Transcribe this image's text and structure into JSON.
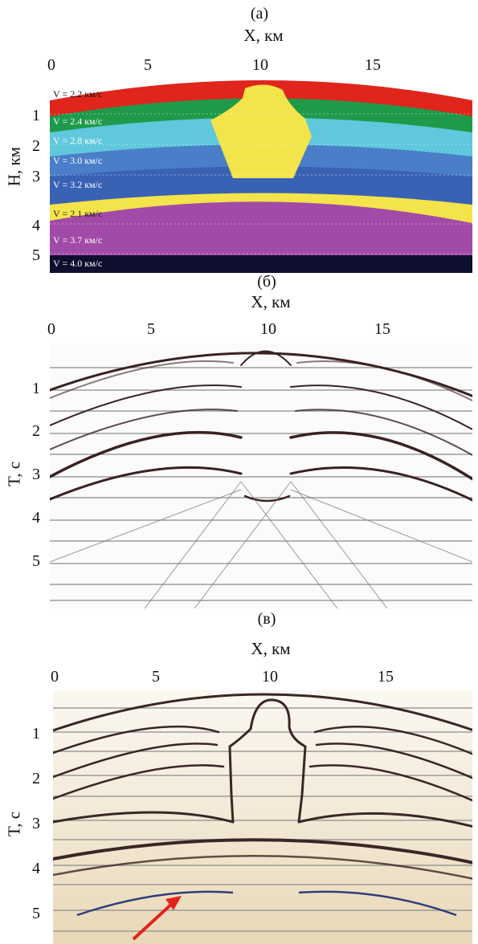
{
  "panels": {
    "a": {
      "label": "(a)",
      "x_axis_title": "X, км",
      "x_ticks": [
        "0",
        "5",
        "10",
        "15"
      ],
      "y_axis_title": "H, км",
      "y_ticks": [
        "1",
        "2",
        "3",
        "4",
        "5"
      ],
      "layers": [
        {
          "text": "V = 2.2 км/с",
          "color": "#e0251c"
        },
        {
          "text": "V = 2.4 км/с",
          "color": "#1f9a4a"
        },
        {
          "text": "V = 2.8 км/с",
          "color": "#5fc8dc"
        },
        {
          "text": "V = 3.0 км/с",
          "color": "#4a7ec8"
        },
        {
          "text": "V = 3.2 км/с",
          "color": "#3a62b4"
        },
        {
          "text": "V = 2.1 км/с",
          "color": "#f2e44a"
        },
        {
          "text": "V = 3.7 км/с",
          "color": "#a24aa8"
        },
        {
          "text": "V = 4.0 км/с",
          "color": "#0e0e2e"
        }
      ]
    },
    "b": {
      "label": "(б)",
      "x_axis_title": "X, км",
      "x_ticks": [
        "0",
        "5",
        "10",
        "15"
      ],
      "y_axis_title": "T, с",
      "y_ticks": [
        "1",
        "2",
        "3",
        "4",
        "5"
      ]
    },
    "c": {
      "label": "(в)",
      "x_axis_title": "X, км",
      "x_ticks": [
        "0",
        "5",
        "10",
        "15"
      ],
      "y_axis_title": "T, с",
      "y_ticks": [
        "1",
        "2",
        "3",
        "4",
        "5"
      ]
    }
  }
}
